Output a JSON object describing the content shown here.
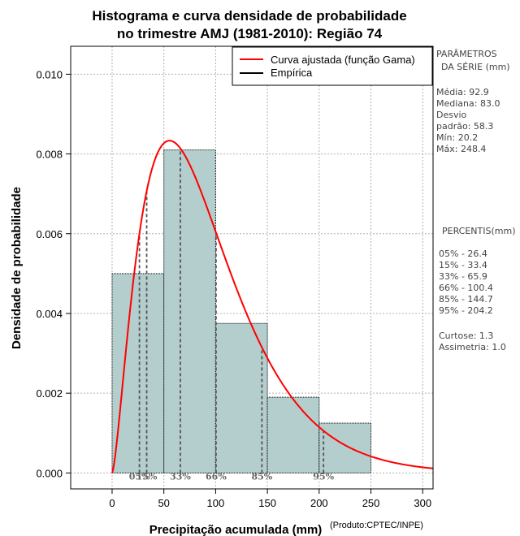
{
  "chart_data": {
    "type": "histogram",
    "title_lines": [
      "Histograma e curva densidade de probabilidade",
      "no trimestre AMJ (1981-2010): Região 74"
    ],
    "xlabel": "Precipitação acumulada (mm)",
    "ylabel": "Densidade de probabilidade",
    "credit": "(Produto:CPTEC/INPE)",
    "xlim": [
      -40,
      310
    ],
    "ylim": [
      -0.0004,
      0.0107
    ],
    "x_ticks": [
      0,
      50,
      100,
      150,
      200,
      250,
      300
    ],
    "y_ticks": [
      0.0,
      0.002,
      0.004,
      0.006,
      0.008,
      0.01
    ],
    "y_tick_labels": [
      "0.000",
      "0.002",
      "0.004",
      "0.006",
      "0.008",
      "0.010"
    ],
    "grid": true,
    "bins": [
      {
        "start": 0,
        "end": 50,
        "density": 0.005
      },
      {
        "start": 50,
        "end": 100,
        "density": 0.0081
      },
      {
        "start": 100,
        "end": 150,
        "density": 0.00375
      },
      {
        "start": 150,
        "end": 200,
        "density": 0.0019
      },
      {
        "start": 200,
        "end": 250,
        "density": 0.00125
      }
    ],
    "gamma_fit": {
      "shape": 2.5,
      "scale": 37.0
    },
    "legend": {
      "position": "top-right",
      "entries": [
        {
          "label": "Curva ajustada (função Gama)",
          "color": "#ff0000"
        },
        {
          "label": "Empírica",
          "color": "#000000"
        }
      ]
    },
    "percentile_marks": [
      {
        "label": "05%",
        "x": 26.4
      },
      {
        "label": "15%",
        "x": 33.4
      },
      {
        "label": "33%",
        "x": 65.9
      },
      {
        "label": "66%",
        "x": 100.4
      },
      {
        "label": "85%",
        "x": 144.7
      },
      {
        "label": "95%",
        "x": 204.2
      }
    ],
    "colors": {
      "bar_fill": "#b4cdcd",
      "curve": "#ff0000",
      "grid": "#b0b0b0",
      "percentile_line": "#555555"
    }
  },
  "side_panel": {
    "params_title_lines": [
      "PARÂMETROS",
      "DA SÉRIE (mm)"
    ],
    "stats": [
      "Média:  92.9",
      "Mediana:  83.0",
      "Desvio",
      "padrão:  58.3",
      "Mín:  20.2",
      "Máx:  248.4"
    ],
    "percentis_title": "PERCENTIS(mm)",
    "percentis": [
      "05% -  26.4",
      "15% -  33.4",
      "33% -  65.9",
      "66% -  100.4",
      "85% -  144.7",
      "95% -  204.2"
    ],
    "shape_stats": [
      "Curtose:  1.3",
      "Assimetria:  1.0"
    ]
  }
}
